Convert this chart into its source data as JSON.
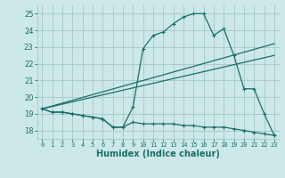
{
  "xlabel": "Humidex (Indice chaleur)",
  "bg_color": "#cce8e8",
  "grid_color": "#aacccc",
  "line_color": "#1a6e6a",
  "xlim": [
    -0.5,
    23.5
  ],
  "ylim": [
    17.5,
    25.5
  ],
  "xticks": [
    0,
    1,
    2,
    3,
    4,
    5,
    6,
    7,
    8,
    9,
    10,
    11,
    12,
    13,
    14,
    15,
    16,
    17,
    18,
    19,
    20,
    21,
    22,
    23
  ],
  "yticks": [
    18,
    19,
    20,
    21,
    22,
    23,
    24,
    25
  ],
  "line1_x": [
    0,
    1,
    2,
    3,
    4,
    5,
    6,
    7,
    8,
    9,
    10,
    11,
    12,
    13,
    14,
    15,
    16,
    17,
    18,
    19,
    20,
    21,
    22,
    23
  ],
  "line1_y": [
    19.3,
    19.1,
    19.1,
    19.0,
    18.9,
    18.8,
    18.7,
    18.2,
    18.2,
    19.4,
    22.9,
    23.7,
    23.9,
    24.4,
    24.8,
    25.0,
    25.0,
    23.7,
    24.1,
    22.5,
    20.5,
    20.5,
    19.0,
    17.7
  ],
  "line2_x": [
    0,
    1,
    2,
    3,
    4,
    5,
    6,
    7,
    8,
    9,
    10,
    11,
    12,
    13,
    14,
    15,
    16,
    17,
    18,
    19,
    20,
    21,
    22,
    23
  ],
  "line2_y": [
    19.3,
    19.1,
    19.1,
    19.0,
    18.9,
    18.8,
    18.7,
    18.2,
    18.2,
    18.5,
    18.4,
    18.4,
    18.4,
    18.4,
    18.3,
    18.3,
    18.2,
    18.2,
    18.2,
    18.1,
    18.0,
    17.9,
    17.8,
    17.7
  ],
  "line3_x": [
    0,
    23
  ],
  "line3_y": [
    19.3,
    23.2
  ],
  "line4_x": [
    0,
    23
  ],
  "line4_y": [
    19.3,
    22.5
  ]
}
